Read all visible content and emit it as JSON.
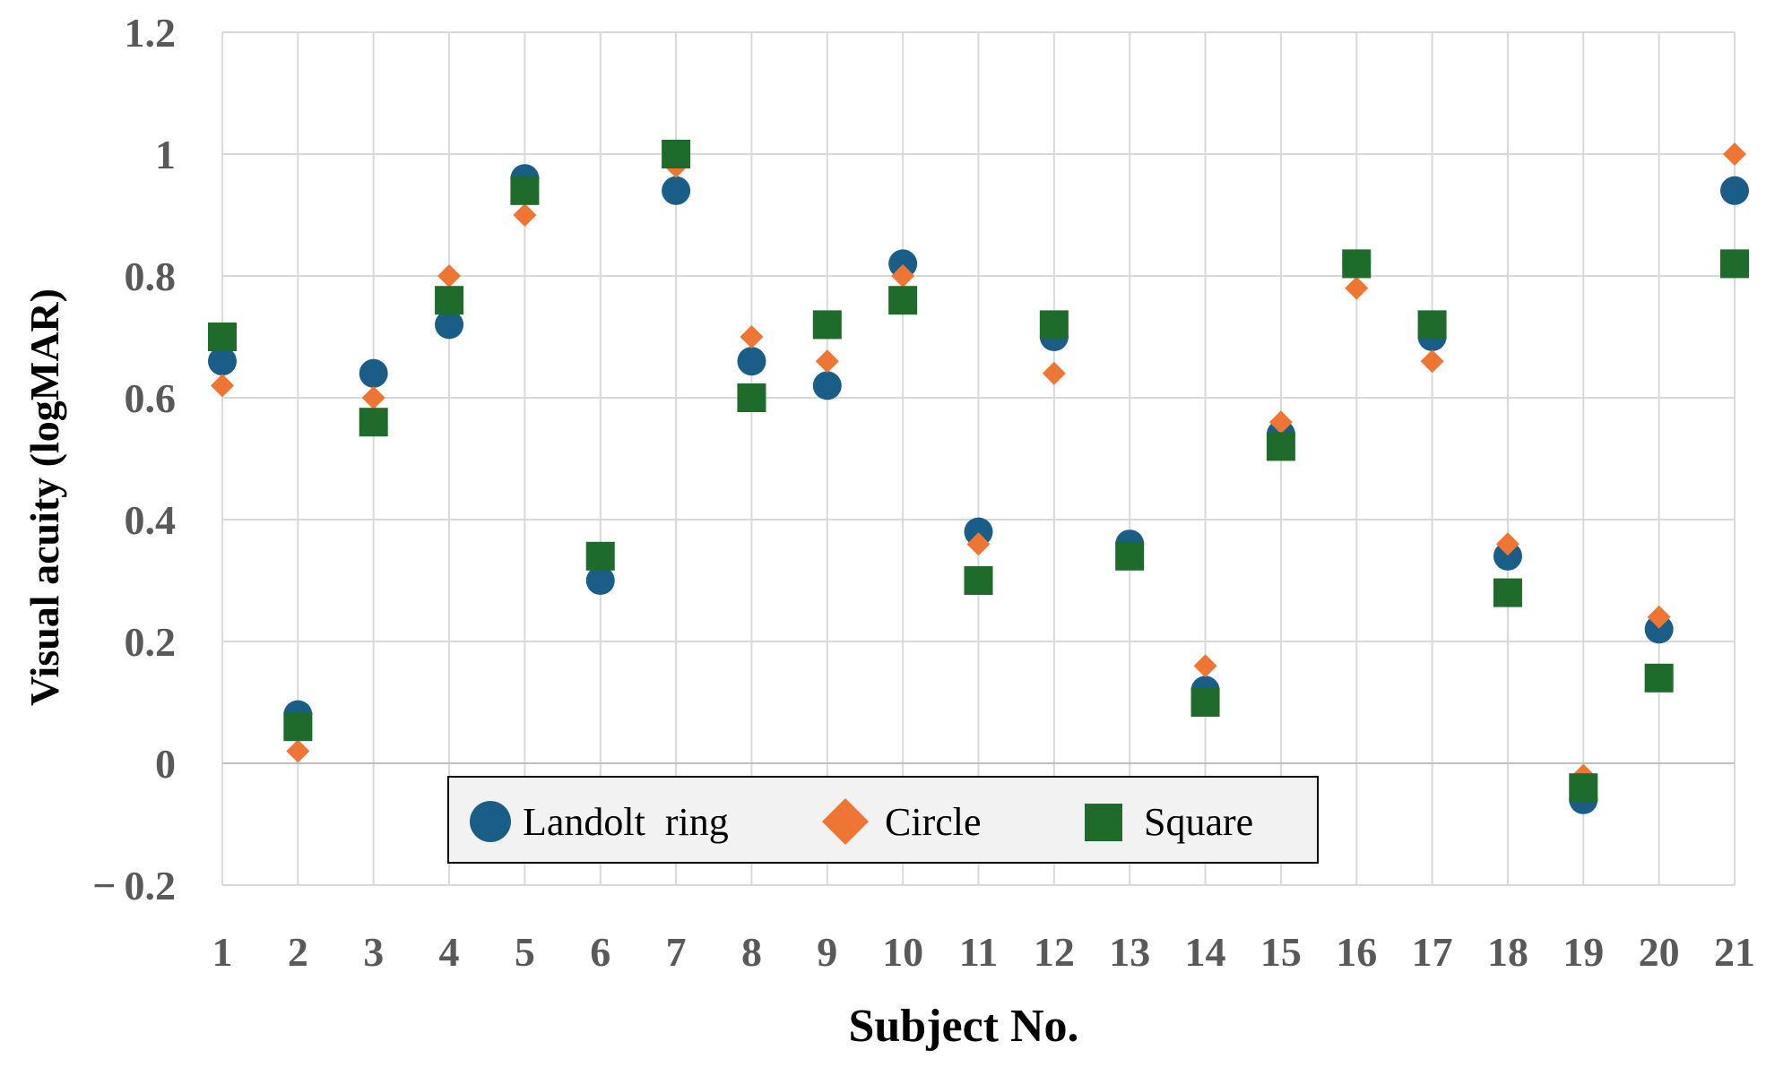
{
  "chart_data": {
    "type": "scatter",
    "xlabel": "Subject No.",
    "ylabel": "Visual acuity (logMAR)",
    "x": [
      1,
      2,
      3,
      4,
      5,
      6,
      7,
      8,
      9,
      10,
      11,
      12,
      13,
      14,
      15,
      16,
      17,
      18,
      19,
      20,
      21
    ],
    "x_tick_labels": [
      "1",
      "2",
      "3",
      "4",
      "5",
      "6",
      "7",
      "8",
      "9",
      "10",
      "11",
      "12",
      "13",
      "14",
      "15",
      "16",
      "17",
      "18",
      "19",
      "20",
      "21"
    ],
    "y_ticks": [
      -0.2,
      0,
      0.2,
      0.4,
      0.6,
      0.8,
      1,
      1.2
    ],
    "y_tick_labels": [
      "− 0.2",
      "0",
      "0.2",
      "0.4",
      "0.6",
      "0.8",
      "1",
      "1.2"
    ],
    "ylim": [
      -0.2,
      1.2
    ],
    "xlim": [
      1,
      21
    ],
    "grid": true,
    "legend_position": "bottom-center",
    "series": [
      {
        "name": "Landolt  ring",
        "marker": "circle",
        "color": "#1a5e87",
        "values": [
          0.66,
          0.08,
          0.64,
          0.72,
          0.96,
          0.3,
          0.94,
          0.66,
          0.62,
          0.82,
          0.38,
          0.7,
          0.36,
          0.12,
          0.54,
          0.82,
          0.7,
          0.34,
          -0.06,
          0.22,
          0.94
        ]
      },
      {
        "name": "Circle",
        "marker": "diamond",
        "color": "#ef7534",
        "values": [
          0.62,
          0.02,
          0.6,
          0.8,
          0.9,
          0.34,
          0.98,
          0.7,
          0.66,
          0.8,
          0.36,
          0.64,
          0.34,
          0.16,
          0.56,
          0.78,
          0.66,
          0.36,
          -0.02,
          0.24,
          1.0
        ]
      },
      {
        "name": "Square",
        "marker": "square",
        "color": "#1e6b2c",
        "values": [
          0.7,
          0.06,
          0.56,
          0.76,
          0.94,
          0.34,
          1.0,
          0.6,
          0.72,
          0.76,
          0.3,
          0.72,
          0.34,
          0.1,
          0.52,
          0.82,
          0.72,
          0.28,
          -0.04,
          0.14,
          0.82
        ]
      }
    ]
  }
}
